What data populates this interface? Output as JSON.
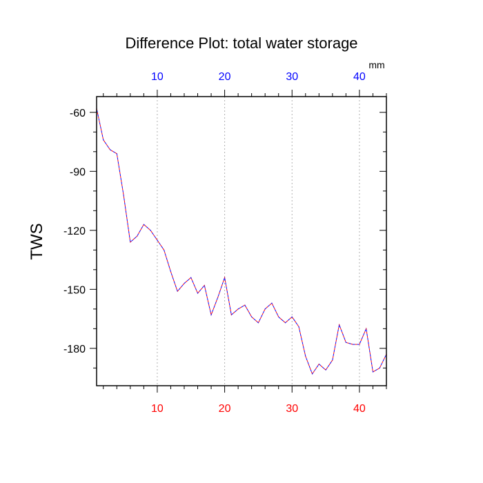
{
  "chart_data": {
    "type": "line",
    "title": "Difference Plot: total water storage",
    "units_label": "mm",
    "ylabel": "TWS",
    "xlabel": "",
    "xlim": [
      1,
      44
    ],
    "ylim": [
      -199,
      -52
    ],
    "x_ticks": [
      10,
      20,
      30,
      40
    ],
    "y_ticks": [
      -60,
      -90,
      -120,
      -150,
      -180
    ],
    "top_tick_color": "#0000ff",
    "bottom_tick_color": "#ff0000",
    "grid": "vertical dotted at major x ticks",
    "series": [
      {
        "color_dash_a": "#ff0000",
        "color_dash_b": "#0000ff",
        "x": [
          1,
          2,
          3,
          4,
          5,
          6,
          7,
          8,
          9,
          10,
          11,
          12,
          13,
          14,
          15,
          16,
          17,
          18,
          19,
          20,
          21,
          22,
          23,
          24,
          25,
          26,
          27,
          28,
          29,
          30,
          31,
          32,
          33,
          34,
          35,
          36,
          37,
          38,
          39,
          40,
          41,
          42,
          43,
          44
        ],
        "values": [
          -58,
          -74,
          -79,
          -81,
          -102,
          -126,
          -123,
          -117,
          -120,
          -125,
          -130,
          -141,
          -151,
          -147,
          -144,
          -152,
          -148,
          -163,
          -154,
          -144,
          -163,
          -160,
          -158,
          -164,
          -167,
          -160,
          -157,
          -164,
          -167,
          -164,
          -169,
          -184,
          -193,
          -188,
          -191,
          -186,
          -168,
          -177,
          -178,
          -178,
          -170,
          -192,
          -190,
          -183
        ]
      }
    ]
  }
}
